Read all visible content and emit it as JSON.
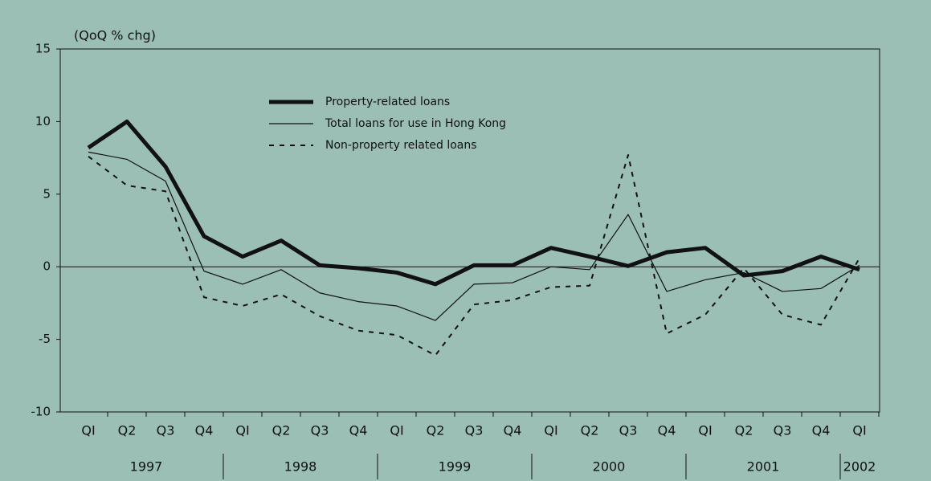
{
  "chart_data": {
    "type": "line",
    "y_axis_label": "(QoQ % chg)",
    "categories": [
      "QI",
      "Q2",
      "Q3",
      "Q4",
      "QI",
      "Q2",
      "Q3",
      "Q4",
      "QI",
      "Q2",
      "Q3",
      "Q4",
      "QI",
      "Q2",
      "Q3",
      "Q4",
      "QI",
      "Q2",
      "Q3",
      "Q4",
      "QI"
    ],
    "years": [
      {
        "label": "1997",
        "quarters": 4
      },
      {
        "label": "1998",
        "quarters": 4
      },
      {
        "label": "1999",
        "quarters": 4
      },
      {
        "label": "2000",
        "quarters": 4
      },
      {
        "label": "2001",
        "quarters": 4
      },
      {
        "label": "2002",
        "quarters": 1
      }
    ],
    "series": [
      {
        "name": "Property-related loans",
        "color": "#111111",
        "style": "thick",
        "values": [
          8.2,
          10.0,
          6.9,
          2.1,
          0.7,
          1.8,
          0.1,
          -0.1,
          -0.4,
          -1.2,
          0.1,
          0.1,
          1.3,
          0.7,
          0.05,
          1.0,
          1.3,
          -0.6,
          -0.3,
          0.7,
          -0.2
        ]
      },
      {
        "name": "Total loans for use in Hong Kong",
        "color": "#111111",
        "style": "thin",
        "values": [
          7.9,
          7.4,
          5.9,
          -0.3,
          -1.2,
          -0.2,
          -1.8,
          -2.4,
          -2.7,
          -3.7,
          -1.2,
          -1.1,
          0.0,
          -0.2,
          3.6,
          -1.7,
          -0.9,
          -0.4,
          -1.7,
          -1.5,
          0.1
        ]
      },
      {
        "name": "Non-property related loans",
        "color": "#111111",
        "style": "dashed",
        "values": [
          7.6,
          5.6,
          5.2,
          -2.1,
          -2.7,
          -1.9,
          -3.4,
          -4.4,
          -4.7,
          -6.1,
          -2.6,
          -2.3,
          -1.4,
          -1.3,
          7.7,
          -4.6,
          -3.3,
          -0.1,
          -3.3,
          -4.0,
          0.6
        ]
      }
    ],
    "ylim": [
      -10,
      15
    ],
    "yticks": [
      15,
      10,
      5,
      0,
      -5,
      -10
    ],
    "zero_line": true
  }
}
